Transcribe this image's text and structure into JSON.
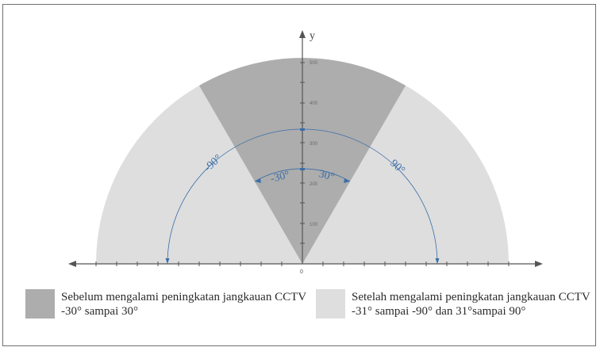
{
  "diagram": {
    "y_axis_label": "y",
    "origin_label": "0",
    "y_ticks": [
      "100",
      "200",
      "300",
      "400",
      "500"
    ],
    "angle_labels": {
      "left_outer": "-90°",
      "left_inner": "-30°",
      "right_inner": "30°",
      "right_outer": "90°"
    },
    "inner_sector_deg": [
      -30,
      30
    ],
    "outer_sector_deg": [
      -90,
      90
    ],
    "colors": {
      "inner": "#adadad",
      "outer": "#dedede",
      "angle": "#3a6ea8",
      "axis": "#555555"
    }
  },
  "legend": {
    "before": {
      "line1": "Sebelum mengalami peningkatan jangkauan CCTV",
      "line2": "-30° sampai 30°"
    },
    "after": {
      "line1": "Setelah mengalami peningkatan  jangkauan CCTV",
      "line2": "-31° sampai -90° dan 31°sampai 90°"
    }
  }
}
